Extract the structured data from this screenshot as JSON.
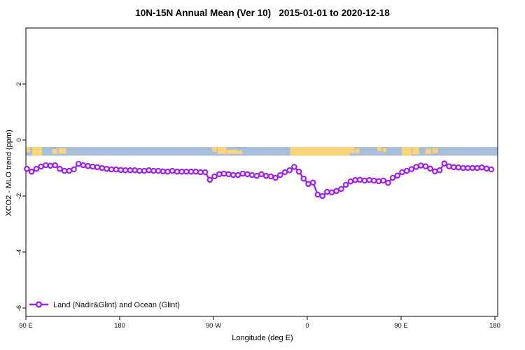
{
  "chart_data": {
    "type": "line",
    "title": "10N-15N Annual Mean (Ver 10)   2015-01-01 to 2020-12-18",
    "xlabel": "Longitude (deg E)",
    "ylabel": "XCO2 - MLO trend (ppm)",
    "xlim": [
      90,
      542.7
    ],
    "ylim": [
      -6.3,
      4.0
    ],
    "grid": false,
    "x_ticks": {
      "values": [
        90,
        180,
        270,
        360,
        450,
        540
      ],
      "labels": [
        "90 E",
        "180",
        "90 W",
        "0",
        "90 E",
        "180"
      ]
    },
    "y_ticks": {
      "values": [
        2,
        0,
        -2,
        -4,
        -6
      ],
      "labels": [
        "2",
        "0",
        "-2",
        "-4",
        "-6"
      ]
    },
    "legend": {
      "position": "bottom-left",
      "label": "Land (Nadir&Glint) and Ocean (Glint)"
    },
    "surface_strip": {
      "meaning": "land(orange)/ocean(blue) mask along 10N-15N",
      "y_range_ppm": [
        -0.25,
        -0.56
      ],
      "ocean_color": "#A9BEDB",
      "land_color": "#FBD47B",
      "land_segments_deg_east": [
        {
          "from": 90.2,
          "to": 94.0,
          "top": 0,
          "h": 0.6
        },
        {
          "from": 96.0,
          "to": 105.5,
          "top": 0,
          "h": 1
        },
        {
          "from": 115.3,
          "to": 120.0,
          "top": 0.25,
          "h": 0.55
        },
        {
          "from": 121.3,
          "to": 128.7,
          "top": 0.15,
          "h": 0.6
        },
        {
          "from": 268.7,
          "to": 273.3,
          "top": 0,
          "h": 0.55
        },
        {
          "from": 274.0,
          "to": 282.7,
          "top": 0,
          "h": 0.8
        },
        {
          "from": 283.3,
          "to": 292.7,
          "top": 0.3,
          "h": 0.5
        },
        {
          "from": 293.0,
          "to": 297.7,
          "top": 0.4,
          "h": 0.4
        },
        {
          "from": 343.7,
          "to": 400.7,
          "top": 0,
          "h": 1
        },
        {
          "from": 400.7,
          "to": 405.3,
          "top": 0,
          "h": 0.7
        },
        {
          "from": 406.0,
          "to": 410.0,
          "top": 0.2,
          "h": 0.5
        },
        {
          "from": 427.3,
          "to": 431.3,
          "top": 0,
          "h": 0.5
        },
        {
          "from": 432.7,
          "to": 436.0,
          "top": 0.1,
          "h": 0.5
        },
        {
          "from": 450.7,
          "to": 460.0,
          "top": 0,
          "h": 1
        },
        {
          "from": 460.7,
          "to": 467.3,
          "top": 0,
          "h": 0.85
        },
        {
          "from": 473.3,
          "to": 478.7,
          "top": 0.2,
          "h": 0.6
        },
        {
          "from": 480.0,
          "to": 485.3,
          "top": 0.15,
          "h": 0.55
        }
      ]
    },
    "series": [
      {
        "name": "Land (Nadir&Glint) and Ocean (Glint)",
        "color": "#A020F0",
        "marker": "open-circle",
        "points": [
          [
            91,
            -1.03
          ],
          [
            95.5,
            -1.13
          ],
          [
            100,
            -1.03
          ],
          [
            104.5,
            -0.95
          ],
          [
            109,
            -0.9
          ],
          [
            113.5,
            -0.92
          ],
          [
            118,
            -0.9
          ],
          [
            122.5,
            -1.03
          ],
          [
            127,
            -1.1
          ],
          [
            131.5,
            -1.1
          ],
          [
            136,
            -1.05
          ],
          [
            140.5,
            -0.85
          ],
          [
            145,
            -0.9
          ],
          [
            149.5,
            -0.93
          ],
          [
            154,
            -0.95
          ],
          [
            158.5,
            -0.97
          ],
          [
            163,
            -1.0
          ],
          [
            167.5,
            -1.03
          ],
          [
            172,
            -1.05
          ],
          [
            176.5,
            -1.05
          ],
          [
            181,
            -1.07
          ],
          [
            185.5,
            -1.08
          ],
          [
            190,
            -1.08
          ],
          [
            194.5,
            -1.08
          ],
          [
            199,
            -1.1
          ],
          [
            203.5,
            -1.1
          ],
          [
            208,
            -1.08
          ],
          [
            212.5,
            -1.1
          ],
          [
            217,
            -1.1
          ],
          [
            221.5,
            -1.12
          ],
          [
            226,
            -1.13
          ],
          [
            230.5,
            -1.1
          ],
          [
            235,
            -1.13
          ],
          [
            239.5,
            -1.13
          ],
          [
            244,
            -1.13
          ],
          [
            248.5,
            -1.13
          ],
          [
            253,
            -1.13
          ],
          [
            257.5,
            -1.15
          ],
          [
            262,
            -1.15
          ],
          [
            266.5,
            -1.42
          ],
          [
            271,
            -1.3
          ],
          [
            275.5,
            -1.22
          ],
          [
            280,
            -1.2
          ],
          [
            284.5,
            -1.22
          ],
          [
            289,
            -1.25
          ],
          [
            293.5,
            -1.25
          ],
          [
            298,
            -1.2
          ],
          [
            302.5,
            -1.22
          ],
          [
            307,
            -1.25
          ],
          [
            311.5,
            -1.28
          ],
          [
            316,
            -1.22
          ],
          [
            320.5,
            -1.28
          ],
          [
            325,
            -1.3
          ],
          [
            329.5,
            -1.35
          ],
          [
            334,
            -1.25
          ],
          [
            338.5,
            -1.15
          ],
          [
            343,
            -1.08
          ],
          [
            347.5,
            -0.96
          ],
          [
            352,
            -1.13
          ],
          [
            356.5,
            -1.38
          ],
          [
            361,
            -1.57
          ],
          [
            365.5,
            -1.52
          ],
          [
            370,
            -1.95
          ],
          [
            374.5,
            -2.0
          ],
          [
            379,
            -1.85
          ],
          [
            383.5,
            -1.87
          ],
          [
            388,
            -1.82
          ],
          [
            392.5,
            -1.75
          ],
          [
            397,
            -1.6
          ],
          [
            401.5,
            -1.48
          ],
          [
            406,
            -1.43
          ],
          [
            410.5,
            -1.42
          ],
          [
            415,
            -1.45
          ],
          [
            419.5,
            -1.43
          ],
          [
            424,
            -1.45
          ],
          [
            428.5,
            -1.47
          ],
          [
            433,
            -1.45
          ],
          [
            437.5,
            -1.53
          ],
          [
            442,
            -1.35
          ],
          [
            446.5,
            -1.27
          ],
          [
            451,
            -1.15
          ],
          [
            455.5,
            -1.1
          ],
          [
            460,
            -1.04
          ],
          [
            464.5,
            -0.96
          ],
          [
            469,
            -0.91
          ],
          [
            473.5,
            -0.94
          ],
          [
            478,
            -1.02
          ],
          [
            482.5,
            -1.12
          ],
          [
            487,
            -1.08
          ],
          [
            491.5,
            -0.84
          ],
          [
            496,
            -0.94
          ],
          [
            500.5,
            -0.97
          ],
          [
            505,
            -0.98
          ],
          [
            509.5,
            -1.0
          ],
          [
            514,
            -1.0
          ],
          [
            518.5,
            -1.0
          ],
          [
            523,
            -1.0
          ],
          [
            527.5,
            -0.98
          ],
          [
            532,
            -1.02
          ],
          [
            536.5,
            -1.05
          ]
        ]
      }
    ]
  }
}
